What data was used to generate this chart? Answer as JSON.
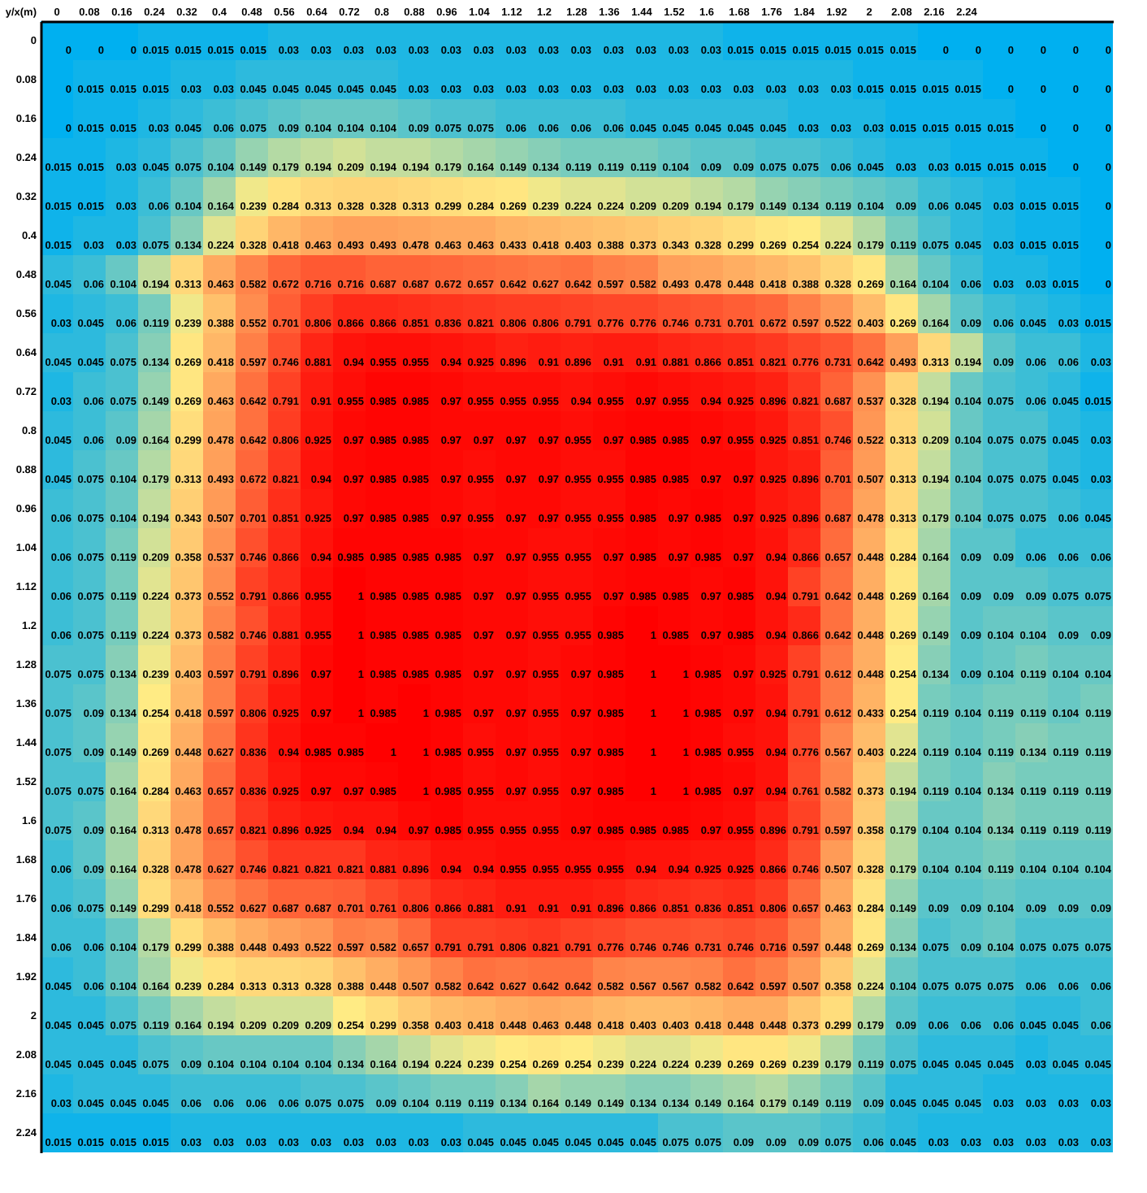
{
  "chart_data": {
    "type": "heatmap",
    "xlabel": "y/x(m)",
    "categories": [
      "0",
      "0.08",
      "0.16",
      "0.24",
      "0.32",
      "0.4",
      "0.48",
      "0.56",
      "0.64",
      "0.72",
      "0.8",
      "0.88",
      "0.96",
      "1.04",
      "1.12",
      "1.2",
      "1.28",
      "1.36",
      "1.44",
      "1.52",
      "1.6",
      "1.68",
      "1.76",
      "1.84",
      "1.92",
      "2",
      "2.08",
      "2.16",
      "2.24",
      null,
      null,
      null,
      null
    ],
    "y_categories": [
      "0",
      "0.08",
      "0.16",
      "0.24",
      "0.32",
      "0.4",
      "0.48",
      "0.56",
      "0.64",
      "0.72",
      "0.8",
      "0.88",
      "0.96",
      "1.04",
      "1.12",
      "1.2",
      "1.28",
      "1.36",
      "1.44",
      "1.52",
      "1.6",
      "1.68",
      "1.76",
      "1.84",
      "1.92",
      "2",
      "2.08",
      "2.16",
      "2.24"
    ],
    "data_labels": true,
    "cells": [
      [
        0,
        0,
        0,
        0.015,
        0.015,
        0.015,
        0.015,
        0.03,
        0.03,
        0.03,
        0.03,
        0.03,
        0.03,
        0.03,
        0.03,
        0.03,
        0.03,
        0.03,
        0.03,
        0.03,
        0.03,
        0.015,
        0.015,
        0.015,
        0.015,
        0.015,
        0.015,
        0,
        0,
        0,
        0,
        0,
        0
      ],
      [
        0,
        0.015,
        0.015,
        0.015,
        0.03,
        0.03,
        0.045,
        0.045,
        0.045,
        0.045,
        0.045,
        0.03,
        0.03,
        0.03,
        0.03,
        0.03,
        0.03,
        0.03,
        0.03,
        0.03,
        0.03,
        0.03,
        0.03,
        0.03,
        0.03,
        0.015,
        0.015,
        0.015,
        0.015,
        0,
        0,
        0,
        0
      ],
      [
        0,
        0.015,
        0.015,
        0.03,
        0.045,
        0.06,
        0.075,
        0.09,
        0.104,
        0.104,
        0.104,
        0.09,
        0.075,
        0.075,
        0.06,
        0.06,
        0.06,
        0.06,
        0.045,
        0.045,
        0.045,
        0.045,
        0.045,
        0.03,
        0.03,
        0.03,
        0.015,
        0.015,
        0.015,
        0.015,
        0,
        0,
        0
      ],
      [
        0.015,
        0.015,
        0.03,
        0.045,
        0.075,
        0.104,
        0.149,
        0.179,
        0.194,
        0.209,
        0.194,
        0.194,
        0.179,
        0.164,
        0.149,
        0.134,
        0.119,
        0.119,
        0.119,
        0.104,
        0.09,
        0.09,
        0.075,
        0.075,
        0.06,
        0.045,
        0.03,
        0.03,
        0.015,
        0.015,
        0.015,
        0,
        0
      ],
      [
        0.015,
        0.015,
        0.03,
        0.06,
        0.104,
        0.164,
        0.239,
        0.284,
        0.313,
        0.328,
        0.328,
        0.313,
        0.299,
        0.284,
        0.269,
        0.239,
        0.224,
        0.224,
        0.209,
        0.209,
        0.194,
        0.179,
        0.149,
        0.134,
        0.119,
        0.104,
        0.09,
        0.06,
        0.045,
        0.03,
        0.015,
        0.015,
        0
      ],
      [
        0.015,
        0.03,
        0.03,
        0.075,
        0.134,
        0.224,
        0.328,
        0.418,
        0.463,
        0.493,
        0.493,
        0.478,
        0.463,
        0.463,
        0.433,
        0.418,
        0.403,
        0.388,
        0.373,
        0.343,
        0.328,
        0.299,
        0.269,
        0.254,
        0.224,
        0.179,
        0.119,
        0.075,
        0.045,
        0.03,
        0.015,
        0.015,
        0
      ],
      [
        0.045,
        0.06,
        0.104,
        0.194,
        0.313,
        0.463,
        0.582,
        0.672,
        0.716,
        0.716,
        0.687,
        0.687,
        0.672,
        0.657,
        0.642,
        0.627,
        0.642,
        0.597,
        0.582,
        0.493,
        0.478,
        0.448,
        0.418,
        0.388,
        0.328,
        0.269,
        0.164,
        0.104,
        0.06,
        0.03,
        0.03,
        0.015,
        0
      ],
      [
        0.03,
        0.045,
        0.06,
        0.119,
        0.239,
        0.388,
        0.552,
        0.701,
        0.806,
        0.866,
        0.866,
        0.851,
        0.836,
        0.821,
        0.806,
        0.806,
        0.791,
        0.776,
        0.776,
        0.746,
        0.731,
        0.701,
        0.672,
        0.597,
        0.522,
        0.403,
        0.269,
        0.164,
        0.09,
        0.06,
        0.045,
        0.03,
        0.015
      ],
      [
        0.045,
        0.045,
        0.075,
        0.134,
        0.269,
        0.418,
        0.597,
        0.746,
        0.881,
        0.94,
        0.955,
        0.955,
        0.94,
        0.925,
        0.896,
        0.91,
        0.896,
        0.91,
        0.91,
        0.881,
        0.866,
        0.851,
        0.821,
        0.776,
        0.731,
        0.642,
        0.493,
        0.313,
        0.194,
        0.09,
        0.06,
        0.06,
        0.03
      ],
      [
        0.03,
        0.06,
        0.075,
        0.149,
        0.269,
        0.463,
        0.642,
        0.791,
        0.91,
        0.955,
        0.985,
        0.985,
        0.97,
        0.955,
        0.955,
        0.955,
        0.94,
        0.955,
        0.97,
        0.955,
        0.94,
        0.925,
        0.896,
        0.821,
        0.687,
        0.537,
        0.328,
        0.194,
        0.104,
        0.075,
        0.06,
        0.045,
        0.015
      ],
      [
        0.045,
        0.06,
        0.09,
        0.164,
        0.299,
        0.478,
        0.642,
        0.806,
        0.925,
        0.97,
        0.985,
        0.985,
        0.97,
        0.97,
        0.97,
        0.97,
        0.955,
        0.97,
        0.985,
        0.985,
        0.97,
        0.955,
        0.925,
        0.851,
        0.746,
        0.522,
        0.313,
        0.209,
        0.104,
        0.075,
        0.075,
        0.045,
        0.03
      ],
      [
        0.045,
        0.075,
        0.104,
        0.179,
        0.313,
        0.493,
        0.672,
        0.821,
        0.94,
        0.97,
        0.985,
        0.985,
        0.97,
        0.955,
        0.97,
        0.97,
        0.955,
        0.955,
        0.985,
        0.985,
        0.97,
        0.97,
        0.925,
        0.896,
        0.701,
        0.507,
        0.313,
        0.194,
        0.104,
        0.075,
        0.075,
        0.045,
        0.03
      ],
      [
        0.06,
        0.075,
        0.104,
        0.194,
        0.343,
        0.507,
        0.701,
        0.851,
        0.925,
        0.97,
        0.985,
        0.985,
        0.97,
        0.955,
        0.97,
        0.97,
        0.955,
        0.955,
        0.985,
        0.97,
        0.985,
        0.97,
        0.925,
        0.896,
        0.687,
        0.478,
        0.313,
        0.179,
        0.104,
        0.075,
        0.075,
        0.06,
        0.045
      ],
      [
        0.06,
        0.075,
        0.119,
        0.209,
        0.358,
        0.537,
        0.746,
        0.866,
        0.94,
        0.985,
        0.985,
        0.985,
        0.985,
        0.97,
        0.97,
        0.955,
        0.955,
        0.97,
        0.985,
        0.97,
        0.985,
        0.97,
        0.94,
        0.866,
        0.657,
        0.448,
        0.284,
        0.164,
        0.09,
        0.09,
        0.06,
        0.06,
        0.06
      ],
      [
        0.06,
        0.075,
        0.119,
        0.224,
        0.373,
        0.552,
        0.791,
        0.866,
        0.955,
        1,
        0.985,
        0.985,
        0.985,
        0.97,
        0.97,
        0.955,
        0.955,
        0.97,
        0.985,
        0.985,
        0.97,
        0.985,
        0.94,
        0.791,
        0.642,
        0.448,
        0.269,
        0.164,
        0.09,
        0.09,
        0.09,
        0.075,
        0.075
      ],
      [
        0.06,
        0.075,
        0.119,
        0.224,
        0.373,
        0.582,
        0.746,
        0.881,
        0.955,
        1,
        0.985,
        0.985,
        0.985,
        0.97,
        0.97,
        0.955,
        0.955,
        0.985,
        1,
        0.985,
        0.97,
        0.985,
        0.94,
        0.866,
        0.642,
        0.448,
        0.269,
        0.149,
        0.09,
        0.104,
        0.104,
        0.09,
        0.09
      ],
      [
        0.075,
        0.075,
        0.134,
        0.239,
        0.403,
        0.597,
        0.791,
        0.896,
        0.97,
        1,
        0.985,
        0.985,
        0.985,
        0.97,
        0.97,
        0.955,
        0.97,
        0.985,
        1,
        1,
        0.985,
        0.97,
        0.925,
        0.791,
        0.612,
        0.448,
        0.254,
        0.134,
        0.09,
        0.104,
        0.119,
        0.104,
        0.104
      ],
      [
        0.075,
        0.09,
        0.134,
        0.254,
        0.418,
        0.597,
        0.806,
        0.925,
        0.97,
        1,
        0.985,
        1,
        0.985,
        0.97,
        0.97,
        0.955,
        0.97,
        0.985,
        1,
        1,
        0.985,
        0.97,
        0.94,
        0.791,
        0.612,
        0.433,
        0.254,
        0.119,
        0.104,
        0.119,
        0.119,
        0.104,
        0.119
      ],
      [
        0.075,
        0.09,
        0.149,
        0.269,
        0.448,
        0.627,
        0.836,
        0.94,
        0.985,
        0.985,
        1,
        1,
        0.985,
        0.955,
        0.97,
        0.955,
        0.97,
        0.985,
        1,
        1,
        0.985,
        0.955,
        0.94,
        0.776,
        0.567,
        0.403,
        0.224,
        0.119,
        0.104,
        0.119,
        0.134,
        0.119,
        0.119
      ],
      [
        0.075,
        0.075,
        0.164,
        0.284,
        0.463,
        0.657,
        0.836,
        0.925,
        0.97,
        0.97,
        0.985,
        1,
        0.985,
        0.955,
        0.97,
        0.955,
        0.97,
        0.985,
        1,
        1,
        0.985,
        0.97,
        0.94,
        0.761,
        0.582,
        0.373,
        0.194,
        0.119,
        0.104,
        0.134,
        0.119,
        0.119,
        0.119
      ],
      [
        0.075,
        0.09,
        0.164,
        0.313,
        0.478,
        0.657,
        0.821,
        0.896,
        0.925,
        0.94,
        0.94,
        0.97,
        0.985,
        0.955,
        0.955,
        0.955,
        0.97,
        0.985,
        0.985,
        0.985,
        0.97,
        0.955,
        0.896,
        0.791,
        0.597,
        0.358,
        0.179,
        0.104,
        0.104,
        0.134,
        0.119,
        0.119,
        0.119
      ],
      [
        0.06,
        0.09,
        0.164,
        0.328,
        0.478,
        0.627,
        0.746,
        0.821,
        0.821,
        0.821,
        0.881,
        0.896,
        0.94,
        0.94,
        0.955,
        0.955,
        0.955,
        0.955,
        0.94,
        0.94,
        0.925,
        0.925,
        0.866,
        0.746,
        0.507,
        0.328,
        0.179,
        0.104,
        0.104,
        0.119,
        0.104,
        0.104,
        0.104
      ],
      [
        0.06,
        0.075,
        0.149,
        0.299,
        0.418,
        0.552,
        0.627,
        0.687,
        0.687,
        0.701,
        0.761,
        0.806,
        0.866,
        0.881,
        0.91,
        0.91,
        0.91,
        0.896,
        0.866,
        0.851,
        0.836,
        0.851,
        0.806,
        0.657,
        0.463,
        0.284,
        0.149,
        0.09,
        0.09,
        0.104,
        0.09,
        0.09,
        0.09
      ],
      [
        0.06,
        0.06,
        0.104,
        0.179,
        0.299,
        0.388,
        0.448,
        0.493,
        0.522,
        0.597,
        0.582,
        0.657,
        0.791,
        0.791,
        0.806,
        0.821,
        0.791,
        0.776,
        0.746,
        0.746,
        0.731,
        0.746,
        0.716,
        0.597,
        0.448,
        0.269,
        0.134,
        0.075,
        0.09,
        0.104,
        0.075,
        0.075,
        0.075
      ],
      [
        0.045,
        0.06,
        0.104,
        0.164,
        0.239,
        0.284,
        0.313,
        0.313,
        0.328,
        0.388,
        0.448,
        0.507,
        0.582,
        0.642,
        0.627,
        0.642,
        0.642,
        0.582,
        0.567,
        0.567,
        0.582,
        0.642,
        0.597,
        0.507,
        0.358,
        0.224,
        0.104,
        0.075,
        0.075,
        0.075,
        0.06,
        0.06,
        0.06
      ],
      [
        0.045,
        0.045,
        0.075,
        0.119,
        0.164,
        0.194,
        0.209,
        0.209,
        0.209,
        0.254,
        0.299,
        0.358,
        0.403,
        0.418,
        0.448,
        0.463,
        0.448,
        0.418,
        0.403,
        0.403,
        0.418,
        0.448,
        0.448,
        0.373,
        0.299,
        0.179,
        0.09,
        0.06,
        0.06,
        0.06,
        0.045,
        0.045,
        0.06
      ],
      [
        0.045,
        0.045,
        0.045,
        0.075,
        0.09,
        0.104,
        0.104,
        0.104,
        0.104,
        0.134,
        0.164,
        0.194,
        0.224,
        0.239,
        0.254,
        0.269,
        0.254,
        0.239,
        0.224,
        0.224,
        0.239,
        0.269,
        0.269,
        0.239,
        0.179,
        0.119,
        0.075,
        0.045,
        0.045,
        0.045,
        0.03,
        0.045,
        0.045
      ],
      [
        0.03,
        0.045,
        0.045,
        0.045,
        0.06,
        0.06,
        0.06,
        0.06,
        0.075,
        0.075,
        0.09,
        0.104,
        0.119,
        0.119,
        0.134,
        0.164,
        0.149,
        0.149,
        0.134,
        0.134,
        0.149,
        0.164,
        0.179,
        0.149,
        0.119,
        0.09,
        0.045,
        0.045,
        0.045,
        0.03,
        0.03,
        0.03,
        0.03
      ],
      [
        0.015,
        0.015,
        0.015,
        0.015,
        0.03,
        0.03,
        0.03,
        0.03,
        0.03,
        0.03,
        0.03,
        0.03,
        0.03,
        0.045,
        0.045,
        0.045,
        0.045,
        0.045,
        0.045,
        0.075,
        0.075,
        0.09,
        0.09,
        0.09,
        0.075,
        0.06,
        0.045,
        0.03,
        0.03,
        0.03,
        0.03,
        0.03,
        0.03
      ]
    ]
  }
}
